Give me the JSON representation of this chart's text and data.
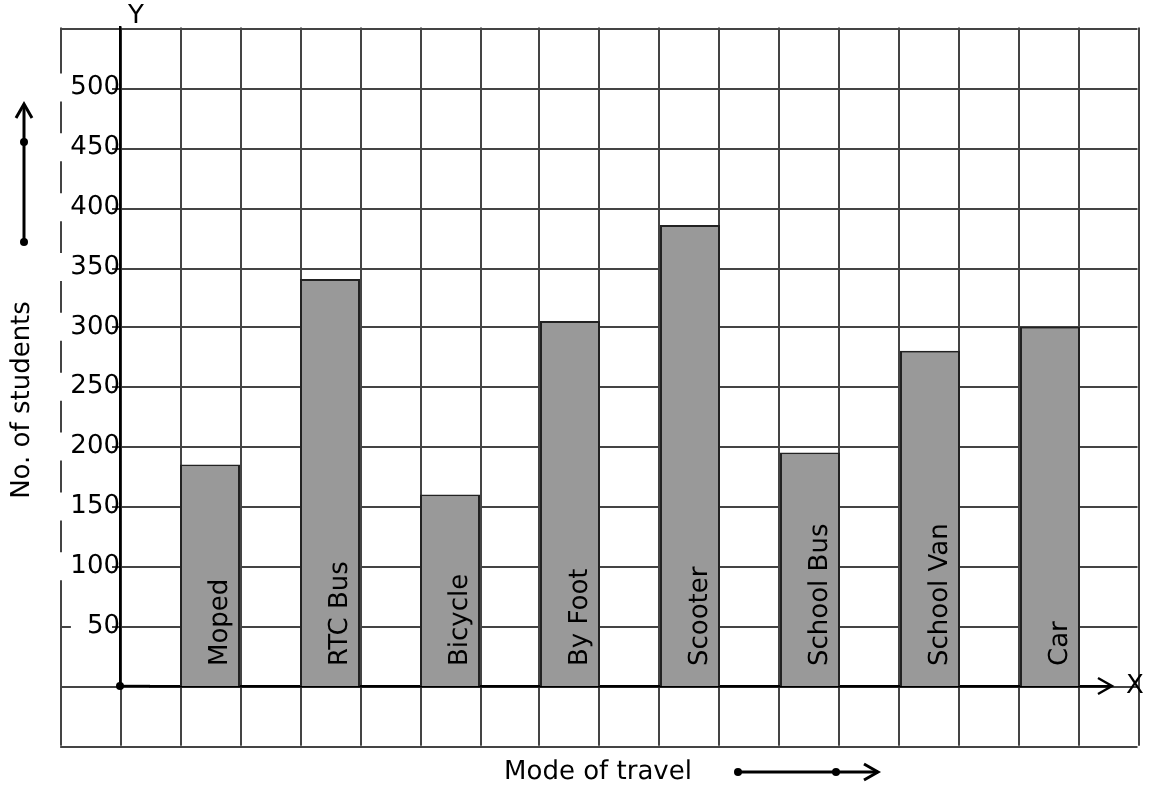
{
  "chart_data": {
    "type": "bar",
    "xlabel": "Mode of travel",
    "ylabel": "No. of students",
    "categories": [
      "Moped",
      "RTC Bus",
      "Bicycle",
      "By Foot",
      "Scooter",
      "School Bus",
      "School Van",
      "Car"
    ],
    "values": [
      185,
      340,
      160,
      305,
      385,
      195,
      280,
      300
    ],
    "color": "#999999",
    "ylim": [
      0,
      550
    ],
    "yticks": [
      50,
      100,
      150,
      200,
      250,
      300,
      350,
      400,
      450,
      500
    ],
    "grid": true,
    "annotations": [
      "Y",
      "X"
    ]
  }
}
